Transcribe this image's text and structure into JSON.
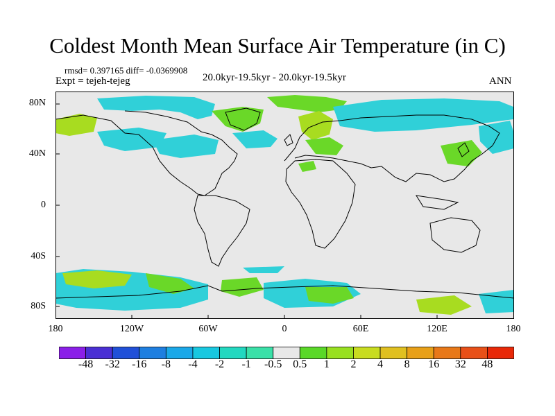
{
  "title": "Coldest Month Mean Surface Air Temperature (in C)",
  "stats": "rmsd= 0.397165 diff= -0.0369908",
  "experiment": "Expt = tejeh-tejeg",
  "period": "20.0kyr-19.5kyr - 20.0kyr-19.5kyr",
  "season": "ANN",
  "lat_labels": [
    "80N",
    "40N",
    "0",
    "40S",
    "80S"
  ],
  "lon_labels": [
    "180",
    "120W",
    "60W",
    "0",
    "60E",
    "120E",
    "180"
  ],
  "colorbar": {
    "labels": [
      "-48",
      "-32",
      "-16",
      "-8",
      "-4",
      "-2",
      "-1",
      "-0.5",
      "0.5",
      "1",
      "2",
      "4",
      "8",
      "16",
      "32",
      "48"
    ],
    "colors": [
      "#8b1fe8",
      "#4a2fd4",
      "#2050d8",
      "#1e7fe0",
      "#1aa8e8",
      "#18c8e0",
      "#22d8c0",
      "#3ae0a8",
      "#e8e8e8",
      "#5ad828",
      "#98e020",
      "#c8dc20",
      "#e0c020",
      "#e8a018",
      "#e87818",
      "#e85018",
      "#e82808"
    ]
  },
  "colors": {
    "background": "#e8e8e8",
    "cyan": "#30d0d8",
    "teal": "#2ae0b0",
    "light_green": "#6ad828",
    "yellow_green": "#a8dc20",
    "coast": "#000000"
  }
}
